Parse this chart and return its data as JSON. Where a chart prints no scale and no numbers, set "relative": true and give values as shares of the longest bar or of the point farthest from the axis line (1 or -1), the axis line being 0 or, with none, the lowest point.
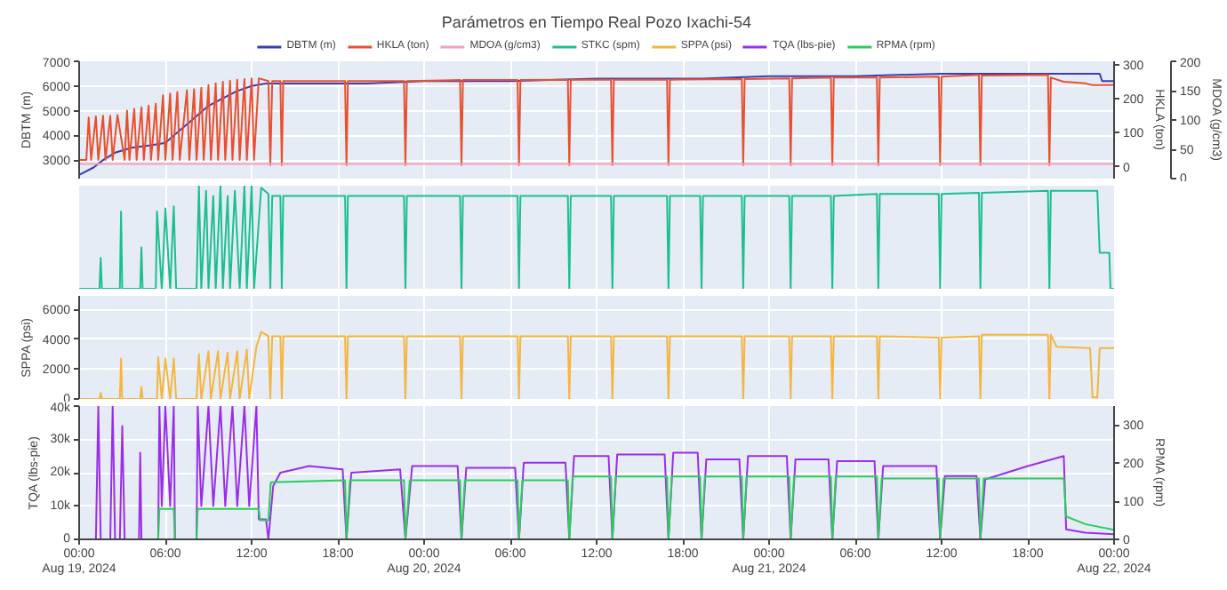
{
  "chart_data": [
    {
      "type": "line",
      "title": "Parámetros en Tiempo Real Pozo Ixachi-54",
      "ylabel": "DBTM (m)",
      "y2label": "HKLA (ton)",
      "y3label": "MDOA (g/cm3)",
      "legend": "top",
      "grid": true,
      "tick_labels": "y",
      "xlim": [
        "2024-08-19T00:00",
        "2024-08-22T00:00"
      ],
      "xticks": [
        {
          "value": "2024-08-19T00:00",
          "label": null
        },
        {
          "value": "2024-08-19T06:00",
          "label": null
        },
        {
          "value": "2024-08-19T12:00",
          "label": null
        },
        {
          "value": "2024-08-19T18:00",
          "label": null
        },
        {
          "value": "2024-08-20T00:00",
          "label": null
        },
        {
          "value": "2024-08-20T06:00",
          "label": null
        },
        {
          "value": "2024-08-20T12:00",
          "label": null
        },
        {
          "value": "2024-08-20T18:00",
          "label": null
        },
        {
          "value": "2024-08-21T00:00",
          "label": null
        },
        {
          "value": "2024-08-21T06:00",
          "label": null
        },
        {
          "value": "2024-08-21T12:00",
          "label": null
        },
        {
          "value": "2024-08-21T18:00",
          "label": null
        },
        {
          "value": "2024-08-22T00:00",
          "label": null
        }
      ],
      "ylim": [
        2250,
        7000
      ],
      "yticks": [
        3000,
        4000,
        5000,
        6000,
        7000
      ],
      "y2lim": [
        -35,
        310
      ],
      "y2ticks": [
        0,
        100,
        200,
        300
      ],
      "y3lim": [
        0,
        200
      ],
      "y3ticks": [
        0,
        50,
        100,
        150,
        200
      ],
      "series": [
        {
          "name": "DBTM (m)",
          "color": "#3c3cb4",
          "x": [
            "2024-08-19T00:00",
            "2024-08-19T01:00",
            "2024-08-19T01:40",
            "2024-08-19T02:30",
            "2024-08-19T03:40",
            "2024-08-19T05:00",
            "2024-08-19T06:00",
            "2024-08-19T07:00",
            "2024-08-19T08:00",
            "2024-08-19T09:00",
            "2024-08-19T10:00",
            "2024-08-19T11:00",
            "2024-08-19T12:00",
            "2024-08-19T13:00",
            "2024-08-19T16:00",
            "2024-08-19T20:00",
            "2024-08-20T00:00",
            "2024-08-20T06:00",
            "2024-08-20T12:00",
            "2024-08-20T18:00",
            "2024-08-20T19:18",
            "2024-08-21T00:00",
            "2024-08-21T06:00",
            "2024-08-21T12:00",
            "2024-08-21T18:00",
            "2024-08-21T20:00",
            "2024-08-21T23:00",
            "2024-08-21T23:10",
            "2024-08-22T00:00"
          ],
          "values": [
            2400,
            2700,
            3000,
            3300,
            3500,
            3600,
            3700,
            4200,
            4700,
            5200,
            5500,
            5800,
            6000,
            6100,
            6100,
            6100,
            6200,
            6200,
            6300,
            6300,
            6300,
            6400,
            6400,
            6500,
            6500,
            6500,
            6500,
            6200,
            6200
          ]
        },
        {
          "name": "HKLA (ton)",
          "color": "#e8502e",
          "axis": "y2",
          "x": [
            "2024-08-19T00:00",
            "2024-08-19T00:30",
            "2024-08-19T00:40",
            "2024-08-19T00:50",
            "2024-08-19T01:10",
            "2024-08-19T01:20",
            "2024-08-19T01:40",
            "2024-08-19T01:50",
            "2024-08-19T02:10",
            "2024-08-19T02:20",
            "2024-08-19T02:40",
            "2024-08-19T03:10",
            "2024-08-19T03:20",
            "2024-08-19T03:30",
            "2024-08-19T03:50",
            "2024-08-19T04:00",
            "2024-08-19T04:20",
            "2024-08-19T04:30",
            "2024-08-19T04:50",
            "2024-08-19T05:00",
            "2024-08-19T05:20",
            "2024-08-19T05:30",
            "2024-08-19T05:50",
            "2024-08-19T06:00",
            "2024-08-19T06:20",
            "2024-08-19T06:30",
            "2024-08-19T06:50",
            "2024-08-19T07:00",
            "2024-08-19T07:30",
            "2024-08-19T07:40",
            "2024-08-19T08:00",
            "2024-08-19T08:10",
            "2024-08-19T08:30",
            "2024-08-19T08:40",
            "2024-08-19T09:00",
            "2024-08-19T09:10",
            "2024-08-19T09:30",
            "2024-08-19T09:40",
            "2024-08-19T10:00",
            "2024-08-19T10:10",
            "2024-08-19T10:30",
            "2024-08-19T10:40",
            "2024-08-19T11:00",
            "2024-08-19T11:10",
            "2024-08-19T11:30",
            "2024-08-19T11:40",
            "2024-08-19T12:00",
            "2024-08-19T12:10",
            "2024-08-19T12:30",
            "2024-08-19T13:10",
            "2024-08-19T13:18",
            "2024-08-19T13:26",
            "2024-08-19T14:00",
            "2024-08-19T14:06",
            "2024-08-19T14:12",
            "2024-08-19T18:30",
            "2024-08-19T18:36",
            "2024-08-19T18:42",
            "2024-08-19T22:36",
            "2024-08-19T22:42",
            "2024-08-19T22:48",
            "2024-08-20T02:30",
            "2024-08-20T02:36",
            "2024-08-20T02:42",
            "2024-08-20T06:30",
            "2024-08-20T06:36",
            "2024-08-20T06:42",
            "2024-08-20T10:00",
            "2024-08-20T10:06",
            "2024-08-20T10:12",
            "2024-08-20T13:00",
            "2024-08-20T13:06",
            "2024-08-20T13:12",
            "2024-08-20T16:54",
            "2024-08-20T17:00",
            "2024-08-20T17:06",
            "2024-08-20T22:06",
            "2024-08-20T22:12",
            "2024-08-20T22:18",
            "2024-08-21T01:24",
            "2024-08-21T01:30",
            "2024-08-21T01:36",
            "2024-08-21T04:18",
            "2024-08-21T04:24",
            "2024-08-21T04:30",
            "2024-08-21T07:30",
            "2024-08-21T07:36",
            "2024-08-21T07:42",
            "2024-08-21T11:48",
            "2024-08-21T11:54",
            "2024-08-21T12:00",
            "2024-08-21T14:36",
            "2024-08-21T14:42",
            "2024-08-21T14:48",
            "2024-08-21T19:24",
            "2024-08-21T19:30",
            "2024-08-21T19:36",
            "2024-08-21T20:30",
            "2024-08-21T22:00",
            "2024-08-21T22:30",
            "2024-08-22T00:00"
          ],
          "values": [
            20,
            20,
            145,
            20,
            148,
            20,
            150,
            20,
            150,
            20,
            152,
            20,
            165,
            20,
            170,
            20,
            175,
            20,
            180,
            20,
            185,
            20,
            210,
            20,
            215,
            20,
            220,
            20,
            225,
            20,
            228,
            20,
            232,
            20,
            240,
            20,
            245,
            20,
            250,
            20,
            253,
            20,
            256,
            20,
            258,
            20,
            260,
            20,
            260,
            252,
            5,
            252,
            252,
            5,
            252,
            252,
            5,
            252,
            252,
            5,
            252,
            255,
            5,
            255,
            255,
            5,
            255,
            256,
            5,
            256,
            256,
            5,
            256,
            256,
            5,
            256,
            258,
            5,
            258,
            260,
            5,
            260,
            262,
            5,
            262,
            262,
            5,
            262,
            265,
            5,
            265,
            270,
            5,
            268,
            270,
            5,
            262,
            250,
            245,
            240,
            240
          ]
        },
        {
          "name": "MDOA (g/cm3)",
          "color": "#f4a0b8",
          "axis": "y3",
          "x": [
            "2024-08-19T00:00",
            "2024-08-22T00:00"
          ],
          "values": [
            25,
            25
          ]
        }
      ]
    },
    {
      "type": "line",
      "relative": true,
      "grid": "x",
      "tick_labels": false,
      "legend": "top",
      "xlim": [
        "2024-08-19T00:00",
        "2024-08-22T00:00"
      ],
      "xticks": [
        {
          "value": "2024-08-19T00:00",
          "label": null
        },
        {
          "value": "2024-08-19T06:00",
          "label": null
        },
        {
          "value": "2024-08-19T12:00",
          "label": null
        },
        {
          "value": "2024-08-19T18:00",
          "label": null
        },
        {
          "value": "2024-08-20T00:00",
          "label": null
        },
        {
          "value": "2024-08-20T06:00",
          "label": null
        },
        {
          "value": "2024-08-20T12:00",
          "label": null
        },
        {
          "value": "2024-08-20T18:00",
          "label": null
        },
        {
          "value": "2024-08-21T00:00",
          "label": null
        },
        {
          "value": "2024-08-21T06:00",
          "label": null
        },
        {
          "value": "2024-08-21T12:00",
          "label": null
        },
        {
          "value": "2024-08-21T18:00",
          "label": null
        },
        {
          "value": "2024-08-22T00:00",
          "label": null
        }
      ],
      "series": [
        {
          "name": "STKC (spm)",
          "color": "#1dbf8e",
          "x": [
            "2024-08-19T00:00",
            "2024-08-19T01:25",
            "2024-08-19T01:30",
            "2024-08-19T01:35",
            "2024-08-19T02:50",
            "2024-08-19T02:55",
            "2024-08-19T03:00",
            "2024-08-19T04:15",
            "2024-08-19T04:20",
            "2024-08-19T04:25",
            "2024-08-19T05:20",
            "2024-08-19T05:25",
            "2024-08-19T05:45",
            "2024-08-19T06:00",
            "2024-08-19T06:20",
            "2024-08-19T06:35",
            "2024-08-19T06:45",
            "2024-08-19T08:10",
            "2024-08-19T08:20",
            "2024-08-19T08:30",
            "2024-08-19T08:50",
            "2024-08-19T09:00",
            "2024-08-19T09:20",
            "2024-08-19T09:30",
            "2024-08-19T09:50",
            "2024-08-19T10:00",
            "2024-08-19T10:20",
            "2024-08-19T10:30",
            "2024-08-19T10:50",
            "2024-08-19T11:10",
            "2024-08-19T11:30",
            "2024-08-19T11:40",
            "2024-08-19T12:00",
            "2024-08-19T12:10",
            "2024-08-19T12:40",
            "2024-08-19T13:10",
            "2024-08-19T13:18",
            "2024-08-19T13:26",
            "2024-08-19T14:00",
            "2024-08-19T14:06",
            "2024-08-19T14:12",
            "2024-08-19T18:30",
            "2024-08-19T18:36",
            "2024-08-19T18:42",
            "2024-08-19T22:36",
            "2024-08-19T22:42",
            "2024-08-19T22:48",
            "2024-08-20T02:30",
            "2024-08-20T02:36",
            "2024-08-20T02:42",
            "2024-08-20T06:30",
            "2024-08-20T06:36",
            "2024-08-20T06:42",
            "2024-08-20T10:00",
            "2024-08-20T10:06",
            "2024-08-20T10:12",
            "2024-08-20T13:00",
            "2024-08-20T13:06",
            "2024-08-20T13:12",
            "2024-08-20T16:54",
            "2024-08-20T17:00",
            "2024-08-20T17:06",
            "2024-08-20T19:12",
            "2024-08-20T19:18",
            "2024-08-20T19:24",
            "2024-08-20T22:06",
            "2024-08-20T22:12",
            "2024-08-20T22:18",
            "2024-08-21T01:24",
            "2024-08-21T01:30",
            "2024-08-21T01:36",
            "2024-08-21T04:18",
            "2024-08-21T04:24",
            "2024-08-21T04:30",
            "2024-08-21T07:30",
            "2024-08-21T07:36",
            "2024-08-21T07:42",
            "2024-08-21T11:48",
            "2024-08-21T11:54",
            "2024-08-21T12:00",
            "2024-08-21T14:36",
            "2024-08-21T14:42",
            "2024-08-21T14:48",
            "2024-08-21T19:24",
            "2024-08-21T19:30",
            "2024-08-21T19:36",
            "2024-08-21T22:50",
            "2024-08-21T23:00",
            "2024-08-21T23:40",
            "2024-08-21T23:45",
            "2024-08-22T00:00"
          ],
          "values": [
            0,
            0,
            0.3,
            0,
            0,
            0.75,
            0,
            0,
            0.4,
            0,
            0,
            0.75,
            0,
            0.78,
            0,
            0.8,
            0,
            0,
            1.0,
            0,
            0.95,
            0,
            0.9,
            0,
            1.0,
            0,
            0.9,
            0,
            0.95,
            0,
            1.0,
            0,
            1.0,
            0,
            0.98,
            0.92,
            0,
            0.9,
            0.9,
            0,
            0.9,
            0.9,
            0,
            0.9,
            0.9,
            0,
            0.9,
            0.9,
            0,
            0.9,
            0.9,
            0,
            0.9,
            0.9,
            0,
            0.9,
            0.9,
            0,
            0.9,
            0.9,
            0,
            0.9,
            0.9,
            0,
            0.9,
            0.9,
            0,
            0.9,
            0.9,
            0,
            0.9,
            0.9,
            0,
            0.9,
            0.92,
            0,
            0.92,
            0.92,
            0,
            0.92,
            0.93,
            0,
            0.93,
            0.95,
            0,
            0.95,
            0.95,
            0.35,
            0.35,
            0,
            0
          ]
        }
      ]
    },
    {
      "type": "line",
      "ylabel": "SPPA (psi)",
      "grid": true,
      "tick_labels": "y",
      "legend": "top",
      "xlim": [
        "2024-08-19T00:00",
        "2024-08-22T00:00"
      ],
      "xticks": [
        {
          "value": "2024-08-19T00:00",
          "label": null
        },
        {
          "value": "2024-08-19T06:00",
          "label": null
        },
        {
          "value": "2024-08-19T12:00",
          "label": null
        },
        {
          "value": "2024-08-19T18:00",
          "label": null
        },
        {
          "value": "2024-08-20T00:00",
          "label": null
        },
        {
          "value": "2024-08-20T06:00",
          "label": null
        },
        {
          "value": "2024-08-20T12:00",
          "label": null
        },
        {
          "value": "2024-08-20T18:00",
          "label": null
        },
        {
          "value": "2024-08-21T00:00",
          "label": null
        },
        {
          "value": "2024-08-21T06:00",
          "label": null
        },
        {
          "value": "2024-08-21T12:00",
          "label": null
        },
        {
          "value": "2024-08-21T18:00",
          "label": null
        },
        {
          "value": "2024-08-22T00:00",
          "label": null
        }
      ],
      "ylim": [
        0,
        6900
      ],
      "yticks": [
        0,
        2000,
        4000,
        6000
      ],
      "series": [
        {
          "name": "SPPA (psi)",
          "color": "#f5b53f",
          "x": [
            "2024-08-19T00:00",
            "2024-08-19T01:25",
            "2024-08-19T01:30",
            "2024-08-19T01:35",
            "2024-08-19T02:50",
            "2024-08-19T02:55",
            "2024-08-19T03:00",
            "2024-08-19T04:15",
            "2024-08-19T04:20",
            "2024-08-19T04:25",
            "2024-08-19T05:25",
            "2024-08-19T05:30",
            "2024-08-19T05:45",
            "2024-08-19T06:00",
            "2024-08-19T06:20",
            "2024-08-19T06:35",
            "2024-08-19T06:45",
            "2024-08-19T08:10",
            "2024-08-19T08:20",
            "2024-08-19T08:30",
            "2024-08-19T09:00",
            "2024-08-19T09:10",
            "2024-08-19T09:40",
            "2024-08-19T09:50",
            "2024-08-19T10:20",
            "2024-08-19T10:30",
            "2024-08-19T11:00",
            "2024-08-19T11:10",
            "2024-08-19T11:40",
            "2024-08-19T11:50",
            "2024-08-19T12:20",
            "2024-08-19T12:40",
            "2024-08-19T13:10",
            "2024-08-19T13:18",
            "2024-08-19T13:26",
            "2024-08-19T14:00",
            "2024-08-19T14:06",
            "2024-08-19T14:12",
            "2024-08-19T18:30",
            "2024-08-19T18:36",
            "2024-08-19T18:42",
            "2024-08-19T22:36",
            "2024-08-19T22:42",
            "2024-08-19T22:48",
            "2024-08-20T02:30",
            "2024-08-20T02:36",
            "2024-08-20T02:42",
            "2024-08-20T06:30",
            "2024-08-20T06:36",
            "2024-08-20T06:42",
            "2024-08-20T10:00",
            "2024-08-20T10:06",
            "2024-08-20T10:12",
            "2024-08-20T13:00",
            "2024-08-20T13:06",
            "2024-08-20T13:12",
            "2024-08-20T16:54",
            "2024-08-20T17:00",
            "2024-08-20T17:06",
            "2024-08-20T22:06",
            "2024-08-20T22:12",
            "2024-08-20T22:18",
            "2024-08-21T01:24",
            "2024-08-21T01:30",
            "2024-08-21T01:36",
            "2024-08-21T04:18",
            "2024-08-21T04:24",
            "2024-08-21T04:30",
            "2024-08-21T07:30",
            "2024-08-21T07:36",
            "2024-08-21T07:42",
            "2024-08-21T11:48",
            "2024-08-21T11:54",
            "2024-08-21T12:00",
            "2024-08-21T14:36",
            "2024-08-21T14:42",
            "2024-08-21T14:48",
            "2024-08-21T19:24",
            "2024-08-21T19:30",
            "2024-08-21T19:36",
            "2024-08-21T20:00",
            "2024-08-21T22:20",
            "2024-08-21T22:30",
            "2024-08-21T22:50",
            "2024-08-21T23:00",
            "2024-08-22T00:00"
          ],
          "values": [
            0,
            0,
            400,
            0,
            0,
            2700,
            0,
            0,
            800,
            0,
            0,
            2800,
            0,
            2700,
            0,
            2700,
            0,
            0,
            3000,
            0,
            3200,
            0,
            3200,
            0,
            3100,
            0,
            3200,
            0,
            3300,
            0,
            3500,
            4500,
            4200,
            0,
            4200,
            4200,
            0,
            4200,
            4200,
            0,
            4200,
            4200,
            0,
            4200,
            4200,
            0,
            4200,
            4200,
            0,
            4200,
            4200,
            0,
            4200,
            4200,
            0,
            4200,
            4200,
            0,
            4200,
            4200,
            0,
            4200,
            4200,
            0,
            4200,
            4200,
            0,
            4200,
            4200,
            0,
            4200,
            4100,
            0,
            4100,
            4200,
            0,
            4300,
            4300,
            0,
            4300,
            3500,
            3400,
            100,
            100,
            3400,
            3400
          ]
        }
      ]
    },
    {
      "type": "line",
      "ylabel": "TQA (lbs-pie)",
      "y2label": "RPMA (rpm)",
      "grid": true,
      "legend": "top",
      "xlim": [
        "2024-08-19T00:00",
        "2024-08-22T00:00"
      ],
      "xticks": [
        {
          "value": "2024-08-19T00:00",
          "label": "00:00\nAug 19, 2024"
        },
        {
          "value": "2024-08-19T06:00",
          "label": "06:00"
        },
        {
          "value": "2024-08-19T12:00",
          "label": "12:00"
        },
        {
          "value": "2024-08-19T18:00",
          "label": "18:00"
        },
        {
          "value": "2024-08-20T00:00",
          "label": "00:00\nAug 20, 2024"
        },
        {
          "value": "2024-08-20T06:00",
          "label": "06:00"
        },
        {
          "value": "2024-08-20T12:00",
          "label": "12:00"
        },
        {
          "value": "2024-08-20T18:00",
          "label": "18:00"
        },
        {
          "value": "2024-08-21T00:00",
          "label": "00:00\nAug 21, 2024"
        },
        {
          "value": "2024-08-21T06:00",
          "label": "06:00"
        },
        {
          "value": "2024-08-21T12:00",
          "label": "12:00"
        },
        {
          "value": "2024-08-21T18:00",
          "label": "18:00"
        },
        {
          "value": "2024-08-22T00:00",
          "label": "00:00\nAug 22, 2024"
        }
      ],
      "ylim": [
        0,
        40000
      ],
      "yticks": [
        0,
        {
          "value": 10000,
          "label": "10k"
        },
        {
          "value": 20000,
          "label": "20k"
        },
        {
          "value": 30000,
          "label": "30k"
        },
        {
          "value": 40000,
          "label": "40k"
        }
      ],
      "y2lim": [
        0,
        350
      ],
      "y2ticks": [
        0,
        100,
        200,
        300
      ],
      "series": [
        {
          "name": "TQA (lbs-pie)",
          "color": "#9a2ee8",
          "x": [
            "2024-08-19T00:00",
            "2024-08-19T01:10",
            "2024-08-19T01:20",
            "2024-08-19T01:30",
            "2024-08-19T02:10",
            "2024-08-19T02:20",
            "2024-08-19T02:30",
            "2024-08-19T02:50",
            "2024-08-19T03:00",
            "2024-08-19T03:10",
            "2024-08-19T04:10",
            "2024-08-19T04:15",
            "2024-08-19T04:20",
            "2024-08-19T05:30",
            "2024-08-19T05:35",
            "2024-08-19T05:45",
            "2024-08-19T06:00",
            "2024-08-19T06:20",
            "2024-08-19T06:35",
            "2024-08-19T06:40",
            "2024-08-19T08:10",
            "2024-08-19T08:15",
            "2024-08-19T08:30",
            "2024-08-19T09:00",
            "2024-08-19T09:20",
            "2024-08-19T09:50",
            "2024-08-19T10:10",
            "2024-08-19T10:40",
            "2024-08-19T11:00",
            "2024-08-19T11:30",
            "2024-08-19T11:50",
            "2024-08-19T12:20",
            "2024-08-19T12:30",
            "2024-08-19T13:00",
            "2024-08-19T13:10",
            "2024-08-19T13:30",
            "2024-08-19T14:00",
            "2024-08-19T15:00",
            "2024-08-19T16:00",
            "2024-08-19T18:20",
            "2024-08-19T18:36",
            "2024-08-19T18:56",
            "2024-08-19T22:20",
            "2024-08-19T22:42",
            "2024-08-19T23:10",
            "2024-08-20T02:20",
            "2024-08-20T02:36",
            "2024-08-20T02:56",
            "2024-08-20T06:20",
            "2024-08-20T06:36",
            "2024-08-20T06:56",
            "2024-08-20T09:50",
            "2024-08-20T10:06",
            "2024-08-20T10:26",
            "2024-08-20T12:50",
            "2024-08-20T13:06",
            "2024-08-20T13:26",
            "2024-08-20T16:44",
            "2024-08-20T17:00",
            "2024-08-20T17:20",
            "2024-08-20T19:02",
            "2024-08-20T19:18",
            "2024-08-20T19:38",
            "2024-08-20T21:56",
            "2024-08-20T22:12",
            "2024-08-20T22:32",
            "2024-08-21T01:14",
            "2024-08-21T01:30",
            "2024-08-21T01:50",
            "2024-08-21T04:08",
            "2024-08-21T04:24",
            "2024-08-21T04:44",
            "2024-08-21T07:20",
            "2024-08-21T07:36",
            "2024-08-21T07:56",
            "2024-08-21T11:38",
            "2024-08-21T11:54",
            "2024-08-21T12:14",
            "2024-08-21T14:26",
            "2024-08-21T14:42",
            "2024-08-21T15:02",
            "2024-08-21T18:00",
            "2024-08-21T20:30",
            "2024-08-21T20:40",
            "2024-08-21T22:00",
            "2024-08-22T00:00"
          ],
          "values": [
            0,
            0,
            40000,
            0,
            0,
            40000,
            0,
            0,
            34000,
            0,
            0,
            26000,
            0,
            0,
            40000,
            10000,
            40000,
            10000,
            40000,
            0,
            0,
            40000,
            10000,
            40000,
            10000,
            40000,
            10000,
            40000,
            10000,
            40000,
            10000,
            40000,
            6000,
            6000,
            0,
            16000,
            20000,
            21000,
            22000,
            21000,
            0,
            20000,
            21000,
            0,
            22000,
            22000,
            0,
            21500,
            21500,
            0,
            23000,
            23000,
            0,
            25000,
            25000,
            0,
            25500,
            25500,
            0,
            26000,
            26000,
            0,
            24000,
            24000,
            0,
            25000,
            25000,
            0,
            24000,
            24000,
            0,
            23500,
            23500,
            0,
            22000,
            22000,
            0,
            19000,
            19000,
            0,
            18000,
            22000,
            25000,
            3000,
            2000,
            1500
          ]
        },
        {
          "name": "RPMA (rpm)",
          "color": "#2ecc5a",
          "axis": "y2",
          "x": [
            "2024-08-19T00:00",
            "2024-08-19T05:30",
            "2024-08-19T05:35",
            "2024-08-19T06:35",
            "2024-08-19T06:40",
            "2024-08-19T08:10",
            "2024-08-19T08:15",
            "2024-08-19T12:30",
            "2024-08-19T12:35",
            "2024-08-19T13:10",
            "2024-08-19T13:20",
            "2024-08-19T18:30",
            "2024-08-19T18:36",
            "2024-08-19T18:50",
            "2024-08-19T22:36",
            "2024-08-19T22:42",
            "2024-08-19T23:00",
            "2024-08-20T02:30",
            "2024-08-20T02:36",
            "2024-08-20T02:50",
            "2024-08-20T06:30",
            "2024-08-20T06:36",
            "2024-08-20T06:50",
            "2024-08-20T10:00",
            "2024-08-20T10:06",
            "2024-08-20T10:20",
            "2024-08-20T13:00",
            "2024-08-20T13:06",
            "2024-08-20T13:20",
            "2024-08-20T16:54",
            "2024-08-20T17:00",
            "2024-08-20T17:14",
            "2024-08-20T19:12",
            "2024-08-20T19:18",
            "2024-08-20T19:32",
            "2024-08-20T22:06",
            "2024-08-20T22:12",
            "2024-08-20T22:26",
            "2024-08-21T01:24",
            "2024-08-21T01:30",
            "2024-08-21T01:44",
            "2024-08-21T04:18",
            "2024-08-21T04:24",
            "2024-08-21T04:38",
            "2024-08-21T07:30",
            "2024-08-21T07:36",
            "2024-08-21T07:50",
            "2024-08-21T11:48",
            "2024-08-21T11:54",
            "2024-08-21T12:08",
            "2024-08-21T14:36",
            "2024-08-21T14:42",
            "2024-08-21T14:56",
            "2024-08-21T20:30",
            "2024-08-21T20:40",
            "2024-08-21T22:00",
            "2024-08-22T00:00"
          ],
          "values": [
            0,
            0,
            80,
            80,
            0,
            0,
            80,
            80,
            50,
            50,
            150,
            155,
            0,
            155,
            155,
            0,
            155,
            155,
            0,
            155,
            155,
            0,
            155,
            155,
            0,
            165,
            165,
            0,
            165,
            165,
            0,
            165,
            165,
            0,
            165,
            165,
            0,
            165,
            165,
            0,
            165,
            165,
            0,
            165,
            165,
            0,
            160,
            160,
            0,
            160,
            160,
            0,
            160,
            160,
            60,
            40,
            25
          ]
        }
      ]
    }
  ]
}
